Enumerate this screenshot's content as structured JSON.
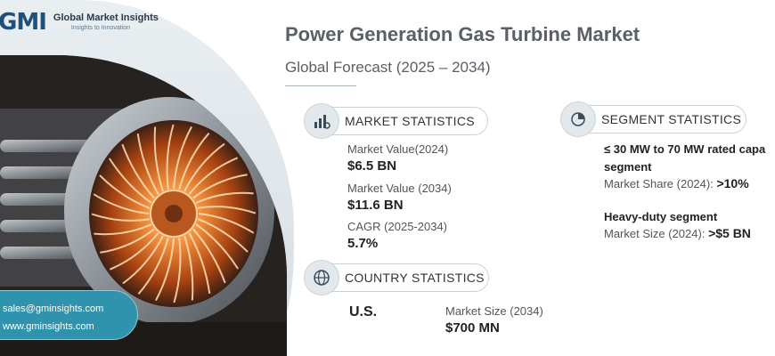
{
  "logo": {
    "mark": "GMI",
    "name": "Global Market Insights",
    "tagline": "Insights to Innovation"
  },
  "header": {
    "title": "Power Generation Gas Turbine Market",
    "subtitle": "Global Forecast (2025 – 2034)"
  },
  "market_statistics": {
    "heading": "MARKET STATISTICS",
    "icon": "bar-chart-gear-icon",
    "items": [
      {
        "label": "Market Value(2024)",
        "value": "$6.5 BN"
      },
      {
        "label": "Market Value (2034)",
        "value": "$11.6 BN"
      },
      {
        "label": "CAGR (2025-2034)",
        "value": "5.7%"
      }
    ]
  },
  "segment_statistics": {
    "heading": "SEGMENT STATISTICS",
    "icon": "pie-chart-icon",
    "segment1": {
      "title_line1": "≤ 30 MW to 70 MW rated capa",
      "title_line2": "segment",
      "metric_label": "Market Share (2024):",
      "metric_value": ">10%"
    },
    "segment2": {
      "title": "Heavy-duty segment",
      "metric_label": "Market Size (2024):",
      "metric_value": ">$5 BN"
    }
  },
  "country_statistics": {
    "heading": "COUNTRY STATISTICS",
    "icon": "globe-icon",
    "country": "U.S.",
    "metric_label": "Market Size (2034)",
    "metric_value": "$700 MN"
  },
  "contact": {
    "email": "sales@gminsights.com",
    "website": "www.gminsights.com"
  },
  "colors": {
    "accent_teal": "#2f93ad",
    "brand_blue": "#1f4f7a",
    "title_gray": "#5a6066"
  }
}
